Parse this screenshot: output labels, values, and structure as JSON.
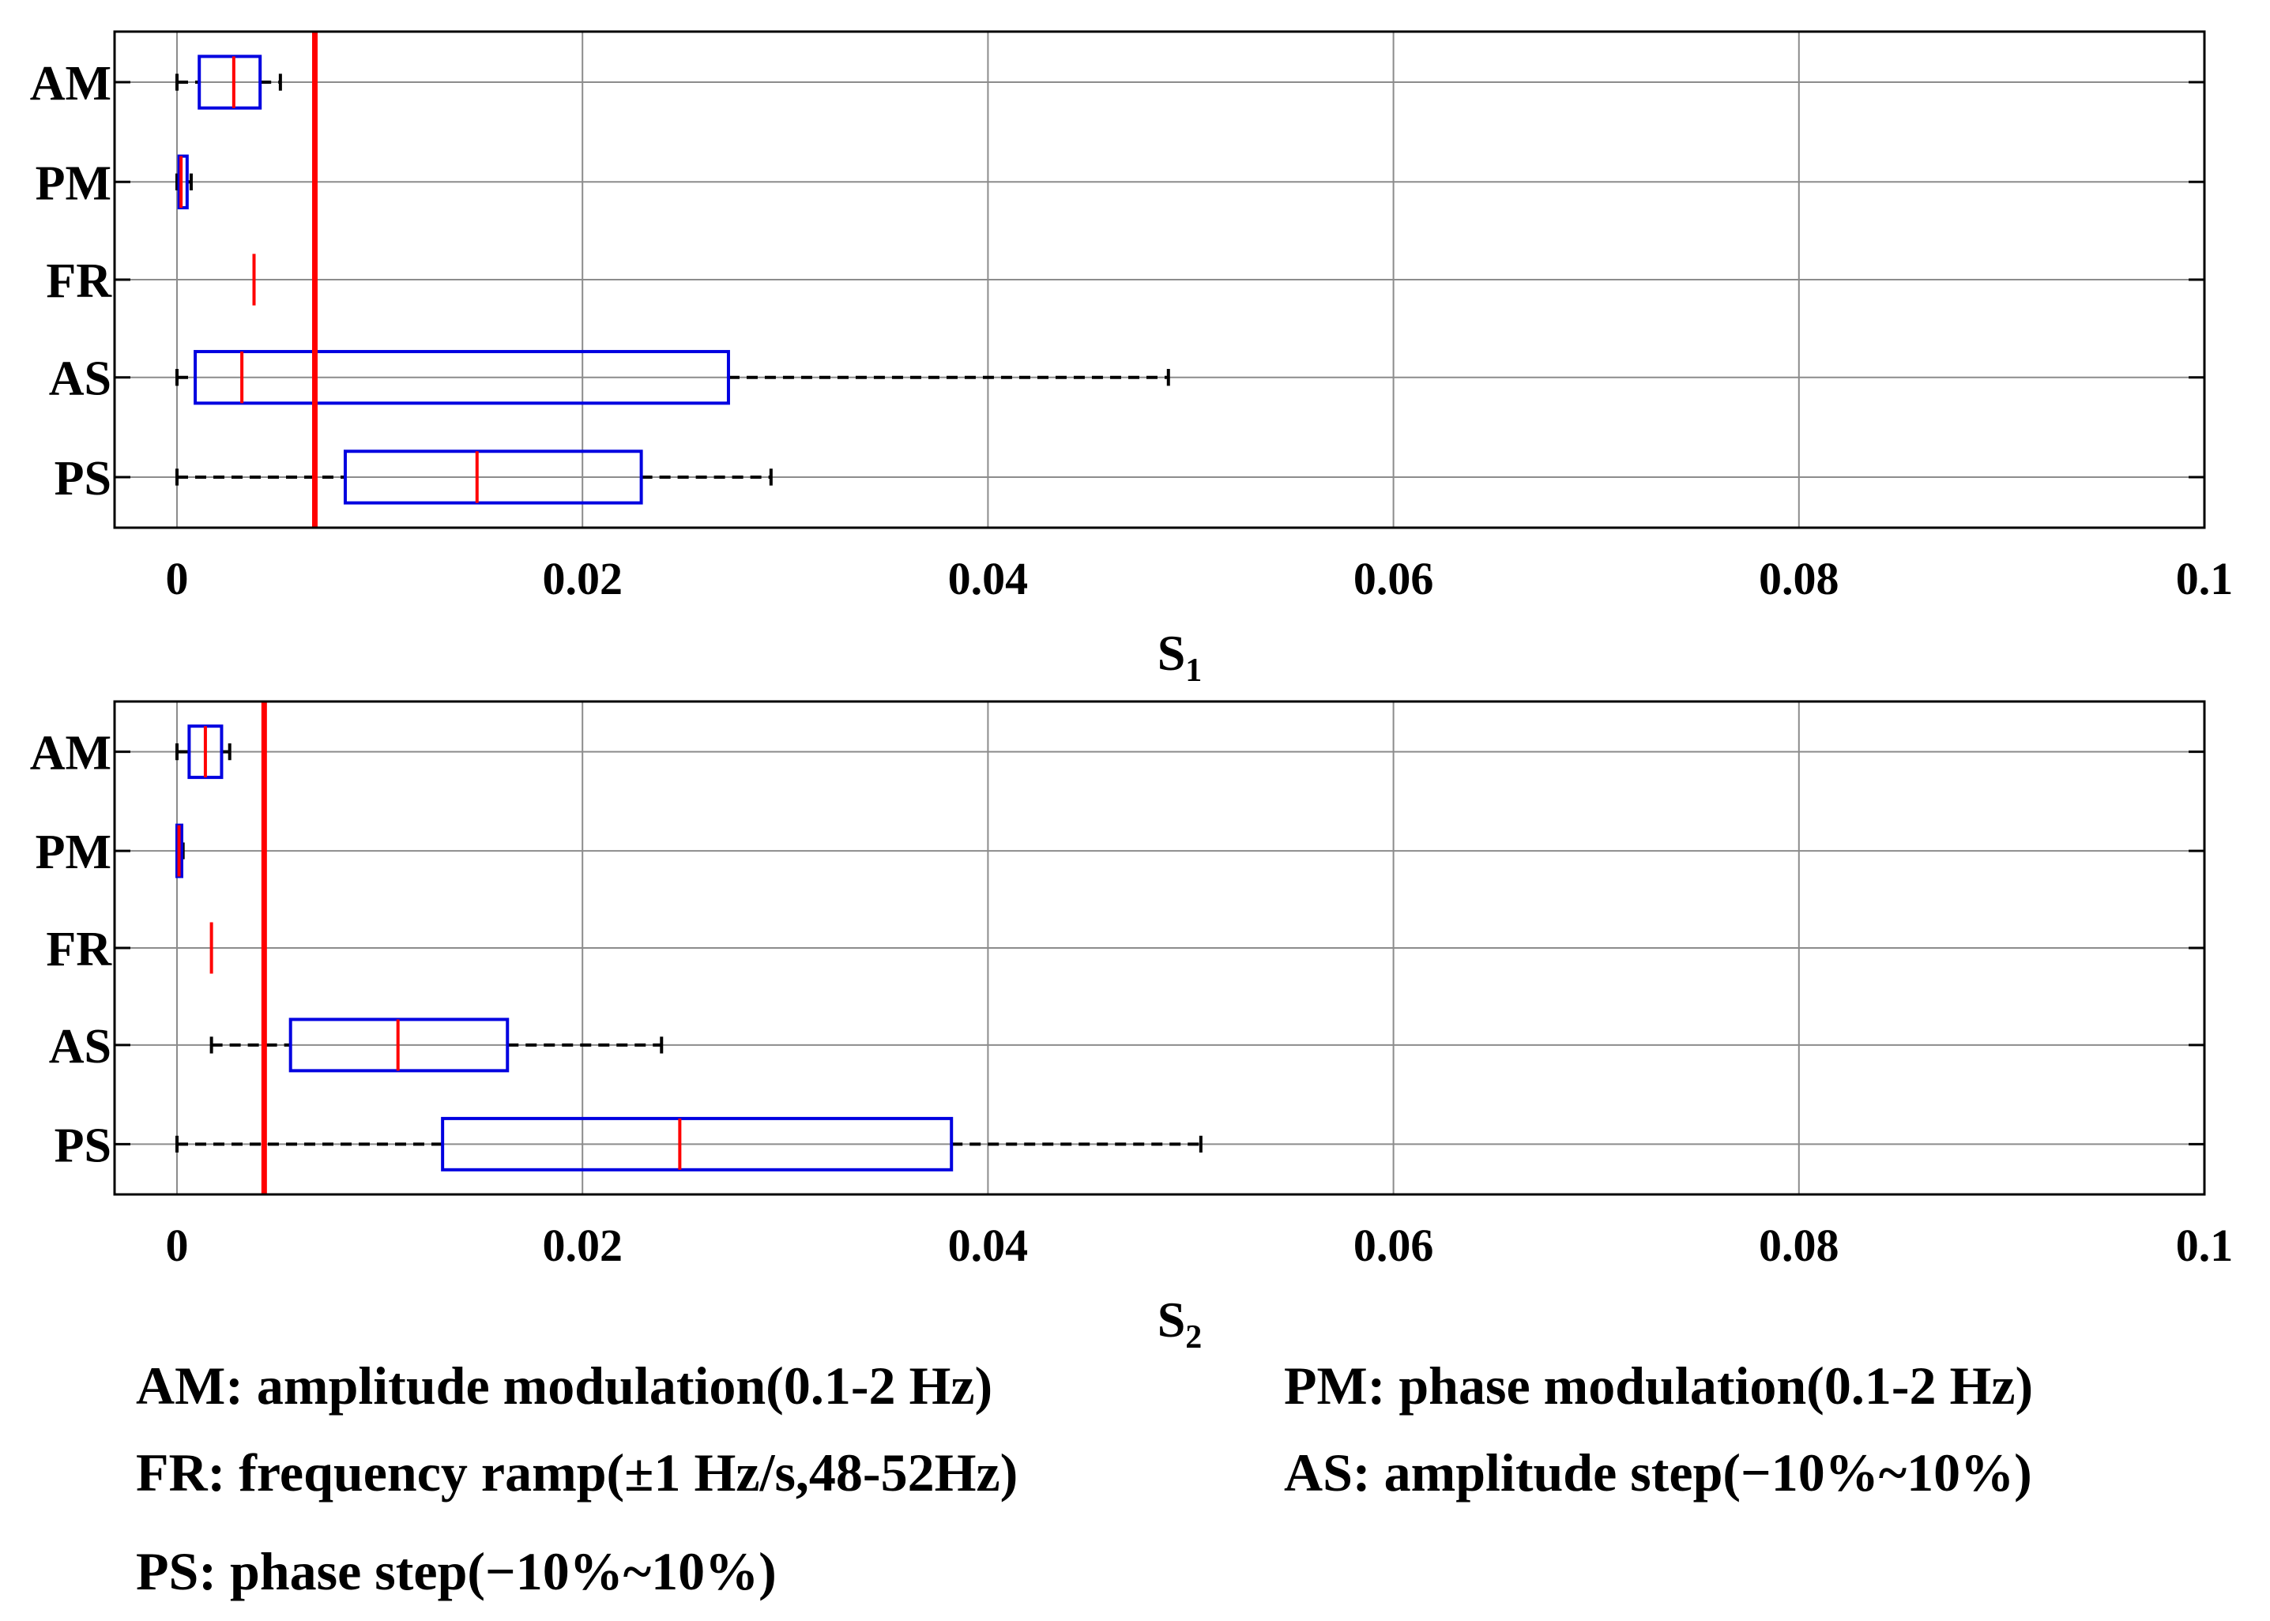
{
  "chart_data": [
    {
      "type": "boxplot",
      "orientation": "horizontal",
      "xlabel": "S",
      "xlabel_subscript": "1",
      "xlim": [
        0,
        0.1
      ],
      "x_ticks": [
        0,
        0.02,
        0.04,
        0.06,
        0.08,
        0.1
      ],
      "x_tick_labels": [
        "0",
        "0.02",
        "0.04",
        "0.06",
        "0.08",
        "0.1"
      ],
      "grid": true,
      "categories": [
        "AM",
        "PM",
        "FR",
        "AS",
        "PS"
      ],
      "boxes": [
        {
          "label": "AM",
          "min": 0.0,
          "q1": 0.0011,
          "median": 0.0028,
          "q3": 0.0041,
          "max": 0.0051
        },
        {
          "label": "PM",
          "min": 0.0,
          "q1": 0.0001,
          "median": 0.0002,
          "q3": 0.0005,
          "max": 0.0007
        },
        {
          "label": "FR",
          "min": 0.0038,
          "q1": 0.0038,
          "median": 0.0038,
          "q3": 0.0038,
          "max": 0.0038
        },
        {
          "label": "AS",
          "min": 0.0,
          "q1": 0.0009,
          "median": 0.0032,
          "q3": 0.0272,
          "max": 0.0489
        },
        {
          "label": "PS",
          "min": 0.0,
          "q1": 0.0083,
          "median": 0.0148,
          "q3": 0.0229,
          "max": 0.0293
        }
      ],
      "threshold": 0.0068
    },
    {
      "type": "boxplot",
      "orientation": "horizontal",
      "xlabel": "S",
      "xlabel_subscript": "2",
      "xlim": [
        0,
        0.1
      ],
      "x_ticks": [
        0,
        0.02,
        0.04,
        0.06,
        0.08,
        0.1
      ],
      "x_tick_labels": [
        "0",
        "0.02",
        "0.04",
        "0.06",
        "0.08",
        "0.1"
      ],
      "grid": true,
      "categories": [
        "AM",
        "PM",
        "FR",
        "AS",
        "PS"
      ],
      "boxes": [
        {
          "label": "AM",
          "min": 0.0,
          "q1": 0.0006,
          "median": 0.0014,
          "q3": 0.0022,
          "max": 0.0026
        },
        {
          "label": "PM",
          "min": 0.0,
          "q1": 0.0,
          "median": 0.0001,
          "q3": 0.0002,
          "max": 0.0003
        },
        {
          "label": "FR",
          "min": 0.0017,
          "q1": 0.0017,
          "median": 0.0017,
          "q3": 0.0017,
          "max": 0.0017
        },
        {
          "label": "AS",
          "min": 0.0017,
          "q1": 0.0056,
          "median": 0.0109,
          "q3": 0.0163,
          "max": 0.0239
        },
        {
          "label": "PS",
          "min": 0.0,
          "q1": 0.0131,
          "median": 0.0248,
          "q3": 0.0382,
          "max": 0.0505
        }
      ],
      "threshold": 0.0043
    }
  ],
  "legend": {
    "am": "AM: amplitude modulation(0.1-2 Hz)",
    "pm": "PM: phase modulation(0.1-2 Hz)",
    "fr": "FR: frequency ramp(±1 Hz/s,48-52Hz)",
    "as": "AS: amplitude step(−10%~10%)",
    "ps": "PS: phase step(−10%~10%)"
  },
  "colors": {
    "box": "#0000e0",
    "median": "#ff0000",
    "threshold": "#ff0000",
    "whisker": "#000000",
    "grid": "#8c8c8c"
  }
}
